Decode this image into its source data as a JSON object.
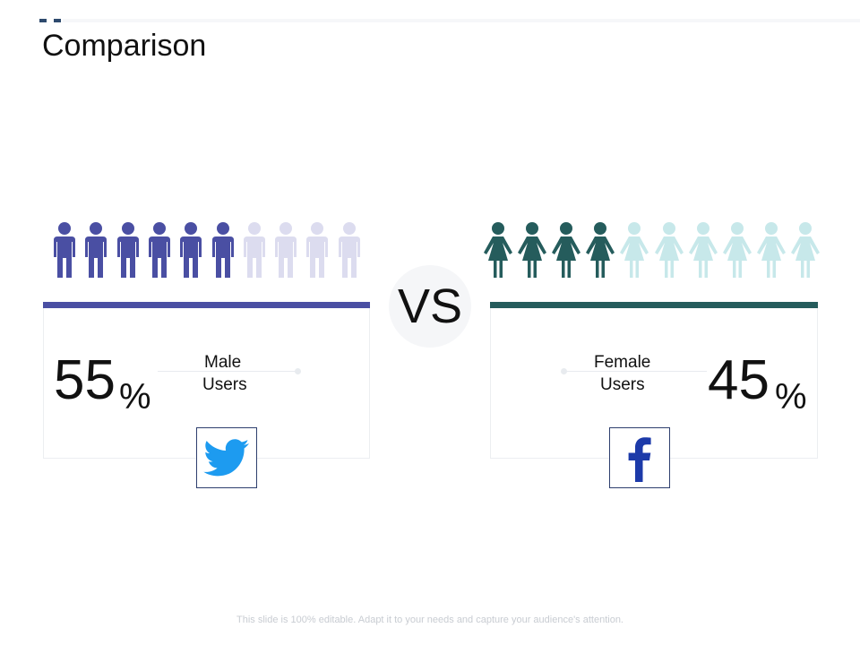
{
  "header": {
    "title": "Comparison"
  },
  "left": {
    "percent": "55",
    "percent_sign": "%",
    "label_line1": "Male",
    "label_line2": "Users",
    "icon": "twitter-icon",
    "figure_total": 10,
    "figure_filled": 6,
    "color_filled": "#4a4fa3",
    "color_empty": "#dcdcef"
  },
  "vs": "VS",
  "right": {
    "percent": "45",
    "percent_sign": "%",
    "label_line1": "Female",
    "label_line2": "Users",
    "icon": "facebook-icon",
    "figure_total": 10,
    "figure_filled": 4,
    "color_filled": "#255c5c",
    "color_empty": "#c7e8ea"
  },
  "colors": {
    "twitter": "#1d9bf0",
    "facebook": "#1c3aa9"
  },
  "footer": "This slide is 100% editable. Adapt it to your needs and capture your audience's attention."
}
